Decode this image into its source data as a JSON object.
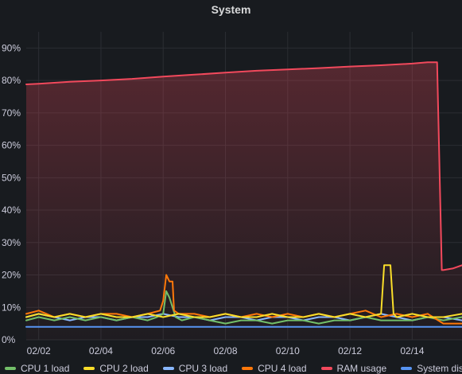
{
  "panel": {
    "title": "System"
  },
  "chart_data": {
    "type": "line",
    "title": "System",
    "xlabel": "",
    "ylabel": "",
    "ylim": [
      0,
      95
    ],
    "yticks": [
      "0%",
      "10%",
      "20%",
      "30%",
      "40%",
      "50%",
      "60%",
      "70%",
      "80%",
      "90%"
    ],
    "ytick_values": [
      0,
      10,
      20,
      30,
      40,
      50,
      60,
      70,
      80,
      90
    ],
    "xlim": [
      1.6,
      15.6
    ],
    "xticks": [
      "02/02",
      "02/04",
      "02/06",
      "02/08",
      "02/10",
      "02/12",
      "02/14"
    ],
    "xtick_values": [
      2,
      4,
      6,
      8,
      10,
      12,
      14
    ],
    "grid": true,
    "legend_position": "bottom",
    "series": [
      {
        "name": "CPU 1 load",
        "color": "#73bf69",
        "x": [
          1.6,
          2.0,
          2.5,
          3.0,
          3.5,
          4.0,
          4.5,
          5.0,
          5.5,
          5.8,
          6.0,
          6.1,
          6.2,
          6.3,
          6.4,
          6.6,
          7.0,
          7.5,
          8.0,
          8.5,
          9.0,
          9.5,
          10.0,
          10.5,
          11.0,
          11.5,
          12.0,
          12.5,
          13.0,
          13.5,
          14.0,
          14.5,
          15.0,
          15.6
        ],
        "y": [
          6,
          7,
          6,
          7,
          6,
          7,
          6,
          7,
          6,
          7,
          8,
          15,
          13,
          10,
          7,
          6,
          7,
          6,
          5,
          6,
          6,
          5,
          6,
          6,
          5,
          6,
          6,
          7,
          6,
          6,
          6,
          7,
          6,
          7
        ]
      },
      {
        "name": "CPU 2 load",
        "color": "#fade2a",
        "x": [
          1.6,
          2.0,
          2.5,
          3.0,
          3.5,
          4.0,
          4.5,
          5.0,
          5.5,
          6.0,
          6.5,
          7.0,
          7.5,
          8.0,
          8.5,
          9.0,
          9.5,
          10.0,
          10.5,
          11.0,
          11.5,
          12.0,
          12.5,
          13.0,
          13.1,
          13.2,
          13.3,
          13.4,
          13.5,
          14.0,
          14.5,
          15.0,
          15.6
        ],
        "y": [
          7,
          8,
          7,
          8,
          7,
          8,
          7,
          7,
          8,
          7,
          8,
          7,
          7,
          8,
          7,
          7,
          8,
          7,
          7,
          8,
          7,
          8,
          7,
          8,
          23,
          23,
          23,
          8,
          7,
          8,
          7,
          7,
          8
        ]
      },
      {
        "name": "CPU 3 load",
        "color": "#8ab8ff",
        "x": [
          1.6,
          2.0,
          2.5,
          3.0,
          3.5,
          4.0,
          4.5,
          5.0,
          5.5,
          6.0,
          6.5,
          7.0,
          7.5,
          8.0,
          8.5,
          9.0,
          9.5,
          10.0,
          10.5,
          11.0,
          11.5,
          12.0,
          12.5,
          13.0,
          13.5,
          14.0,
          14.5,
          15.0,
          15.6
        ],
        "y": [
          7,
          8,
          7,
          6,
          7,
          7,
          6,
          7,
          7,
          8,
          7,
          7,
          6,
          7,
          7,
          6,
          7,
          7,
          6,
          7,
          7,
          6,
          7,
          8,
          7,
          6,
          7,
          7,
          6
        ]
      },
      {
        "name": "CPU 4 load",
        "color": "#ff780a",
        "x": [
          1.6,
          2.0,
          2.5,
          3.0,
          3.5,
          4.0,
          4.5,
          5.0,
          5.5,
          5.9,
          6.0,
          6.1,
          6.2,
          6.3,
          6.35,
          6.5,
          7.0,
          7.5,
          8.0,
          8.5,
          9.0,
          9.5,
          10.0,
          10.5,
          11.0,
          11.5,
          12.0,
          12.5,
          13.0,
          13.5,
          14.0,
          14.5,
          15.0,
          15.6
        ],
        "y": [
          8,
          9,
          7,
          8,
          7,
          8,
          8,
          7,
          8,
          9,
          12,
          20,
          18,
          18,
          9,
          8,
          8,
          7,
          8,
          7,
          8,
          7,
          8,
          7,
          8,
          7,
          8,
          9,
          7,
          8,
          7,
          8,
          5,
          5
        ]
      },
      {
        "name": "RAM usage",
        "color": "#f2495c",
        "x": [
          1.6,
          2.0,
          3.0,
          4.0,
          5.0,
          6.0,
          7.0,
          8.0,
          9.0,
          10.0,
          11.0,
          12.0,
          13.0,
          14.0,
          14.5,
          14.8,
          14.95,
          15.0,
          15.3,
          15.6
        ],
        "y": [
          78.8,
          79,
          79.6,
          80,
          80.5,
          81.2,
          81.8,
          82.4,
          83,
          83.4,
          83.8,
          84.3,
          84.7,
          85.2,
          85.6,
          85.6,
          21.5,
          21.5,
          22,
          23
        ]
      },
      {
        "name": "System disk",
        "color": "#5794f2",
        "x": [
          1.6,
          15.6
        ],
        "y": [
          4,
          4
        ]
      }
    ]
  }
}
